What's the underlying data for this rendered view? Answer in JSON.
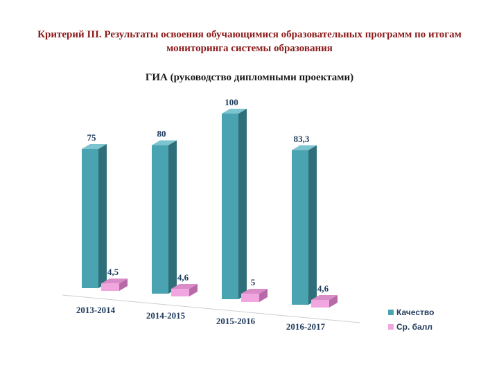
{
  "page": {
    "title_line1": "Критерий III. Результаты освоения обучающимися образовательных программ по итогам",
    "title_line2": "мониторинга системы образования",
    "subtitle": "ГИА (руководство дипломными проектами)"
  },
  "colors": {
    "title": "#8b1a1a",
    "quality_front": "#4aa3b0",
    "quality_side": "#2f6f7a",
    "quality_top": "#7cc4cf",
    "avg_front": "#f2a6e0",
    "avg_side": "#b86aa8",
    "avg_top": "#d98cc8"
  },
  "chart_data": {
    "type": "bar",
    "categories": [
      "2013-2014",
      "2014-2015",
      "2015-2016",
      "2016-2017"
    ],
    "series": [
      {
        "name": "Качество",
        "values": [
          75,
          80,
          100,
          83.3
        ],
        "labels": [
          "75",
          "80",
          "100",
          "83,3"
        ]
      },
      {
        "name": "Ср. балл",
        "values": [
          4.5,
          4.6,
          5,
          4.6
        ],
        "labels": [
          "4,5",
          "4,6",
          "5",
          "4,6"
        ]
      }
    ],
    "ylim": [
      0,
      100
    ],
    "grid": false,
    "legend_position": "bottom-right"
  }
}
